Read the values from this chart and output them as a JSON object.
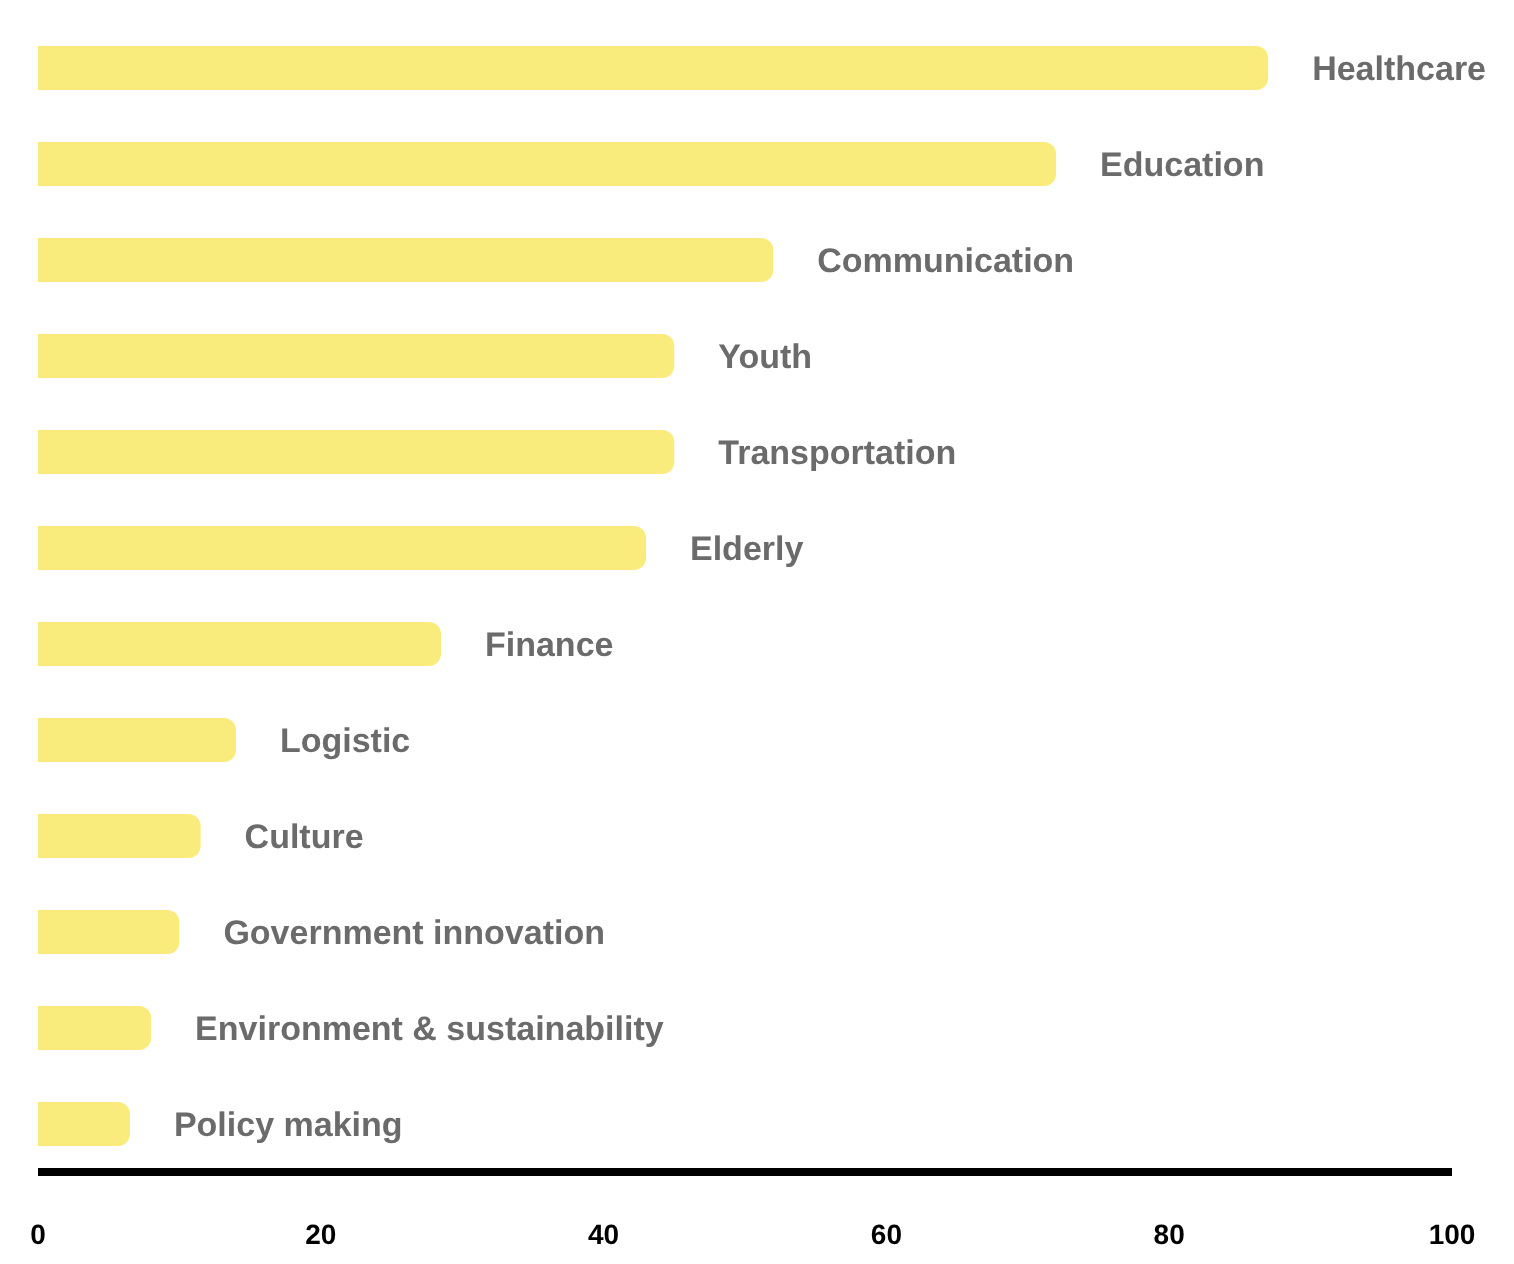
{
  "chart_data": {
    "type": "bar",
    "orientation": "horizontal",
    "categories": [
      "Healthcare",
      "Education",
      "Communication",
      "Youth",
      "Transportation",
      "Elderly",
      "Finance",
      "Logistic",
      "Culture",
      "Government innovation",
      "Environment & sustainability",
      "Policy making"
    ],
    "values": [
      87,
      72,
      52,
      45,
      45,
      43,
      28.5,
      14,
      11.5,
      10,
      8,
      6.5
    ],
    "color": "#f9ec7d",
    "xlim": [
      0,
      100
    ],
    "xticks": [
      0,
      20,
      40,
      60,
      80,
      100
    ],
    "grid": false,
    "legend": false
  }
}
